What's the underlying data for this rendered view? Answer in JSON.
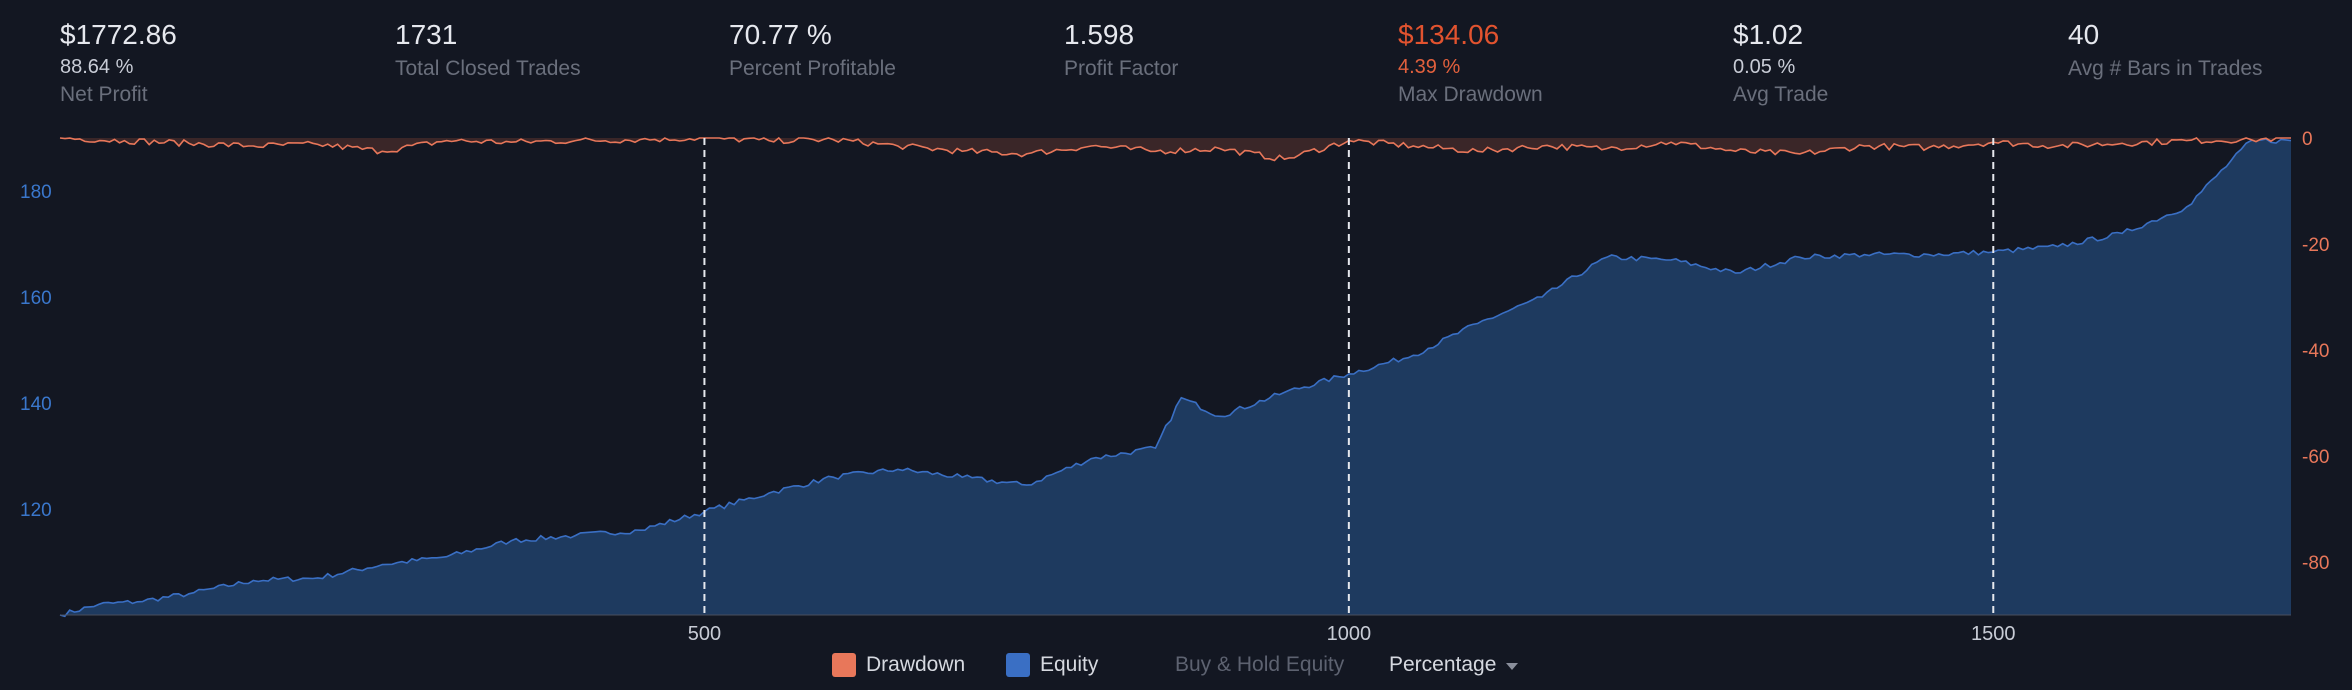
{
  "stats": [
    {
      "value": "$1772.86",
      "sub": "88.64 %",
      "label": "Net Profit"
    },
    {
      "value": "1731",
      "sub": "",
      "label": "Total Closed Trades"
    },
    {
      "value": "70.77 %",
      "sub": "",
      "label": "Percent Profitable"
    },
    {
      "value": "1.598",
      "sub": "",
      "label": "Profit Factor"
    },
    {
      "value": "$134.06",
      "sub": "4.39 %",
      "label": "Max Drawdown"
    },
    {
      "value": "$1.02",
      "sub": "0.05 %",
      "label": "Avg Trade"
    },
    {
      "value": "40",
      "sub": "",
      "label": "Avg # Bars in Trades"
    }
  ],
  "colors": {
    "background": "#131722",
    "equity_line": "#3a6fc4",
    "equity_fill": "#1e3a5f",
    "drawdown_line": "#e8775a",
    "drawdown_fill": "#3a2628",
    "negative": "#e2532f",
    "left_axis": "#3a77cc",
    "right_axis": "#e8775a"
  },
  "legend": {
    "drawdown": "Drawdown",
    "equity": "Equity",
    "buy_hold": "Buy & Hold Equity",
    "mode": "Percentage",
    "dropdown_icon": "chevron-down-icon"
  },
  "chart_data": {
    "type": "area",
    "x_range": [
      0,
      1731
    ],
    "x_ticks": [
      500,
      1000,
      1500
    ],
    "x_tick_labels": [
      "500",
      "1000",
      "1500"
    ],
    "vertical_markers": [
      500,
      1000,
      1500
    ],
    "left_axis": {
      "range": [
        100,
        190
      ],
      "ticks": [
        120,
        140,
        160,
        180
      ],
      "tick_labels": [
        "120",
        "140",
        "160",
        "180"
      ]
    },
    "right_axis": {
      "range": [
        -90,
        0
      ],
      "ticks": [
        0,
        -20,
        -40,
        -60,
        -80
      ],
      "tick_labels": [
        "0",
        "-20",
        "-40",
        "-60",
        "-80"
      ]
    },
    "series": [
      {
        "name": "Equity",
        "axis": "left",
        "x": [
          0,
          30,
          60,
          100,
          150,
          200,
          250,
          300,
          350,
          400,
          450,
          500,
          550,
          600,
          650,
          700,
          750,
          800,
          850,
          870,
          900,
          950,
          1000,
          1050,
          1100,
          1150,
          1200,
          1250,
          1300,
          1350,
          1400,
          1450,
          1500,
          1550,
          1600,
          1650,
          1700,
          1731
        ],
        "values": [
          100.0,
          102.0,
          102.5,
          104.0,
          106.5,
          107.0,
          109.5,
          111.0,
          114.0,
          115.0,
          116.0,
          119.5,
          123.0,
          126.0,
          127.5,
          126.0,
          124.5,
          129.5,
          131.5,
          141.0,
          137.5,
          142.0,
          145.5,
          149.0,
          155.0,
          160.0,
          167.5,
          167.0,
          164.5,
          167.5,
          168.0,
          168.0,
          168.5,
          169.5,
          172.0,
          177.0,
          189.5,
          189.5
        ]
      },
      {
        "name": "Drawdown",
        "axis": "right",
        "x": [
          0,
          50,
          100,
          150,
          200,
          250,
          300,
          350,
          400,
          450,
          500,
          550,
          600,
          650,
          700,
          750,
          800,
          850,
          900,
          950,
          1000,
          1050,
          1100,
          1150,
          1200,
          1250,
          1300,
          1350,
          1400,
          1450,
          1500,
          1550,
          1600,
          1650,
          1700,
          1731
        ],
        "values": [
          0.0,
          -0.5,
          -1.0,
          -1.5,
          -1.2,
          -2.5,
          -0.5,
          -0.8,
          -0.5,
          -0.3,
          0.0,
          -0.5,
          -0.3,
          -1.5,
          -2.5,
          -3.0,
          -1.5,
          -2.5,
          -2.0,
          -4.0,
          -0.5,
          -1.5,
          -2.5,
          -1.5,
          -2.0,
          -0.8,
          -2.5,
          -3.0,
          -1.5,
          -1.8,
          -0.8,
          -1.5,
          -1.0,
          -0.5,
          -0.3,
          0.0
        ]
      }
    ]
  }
}
